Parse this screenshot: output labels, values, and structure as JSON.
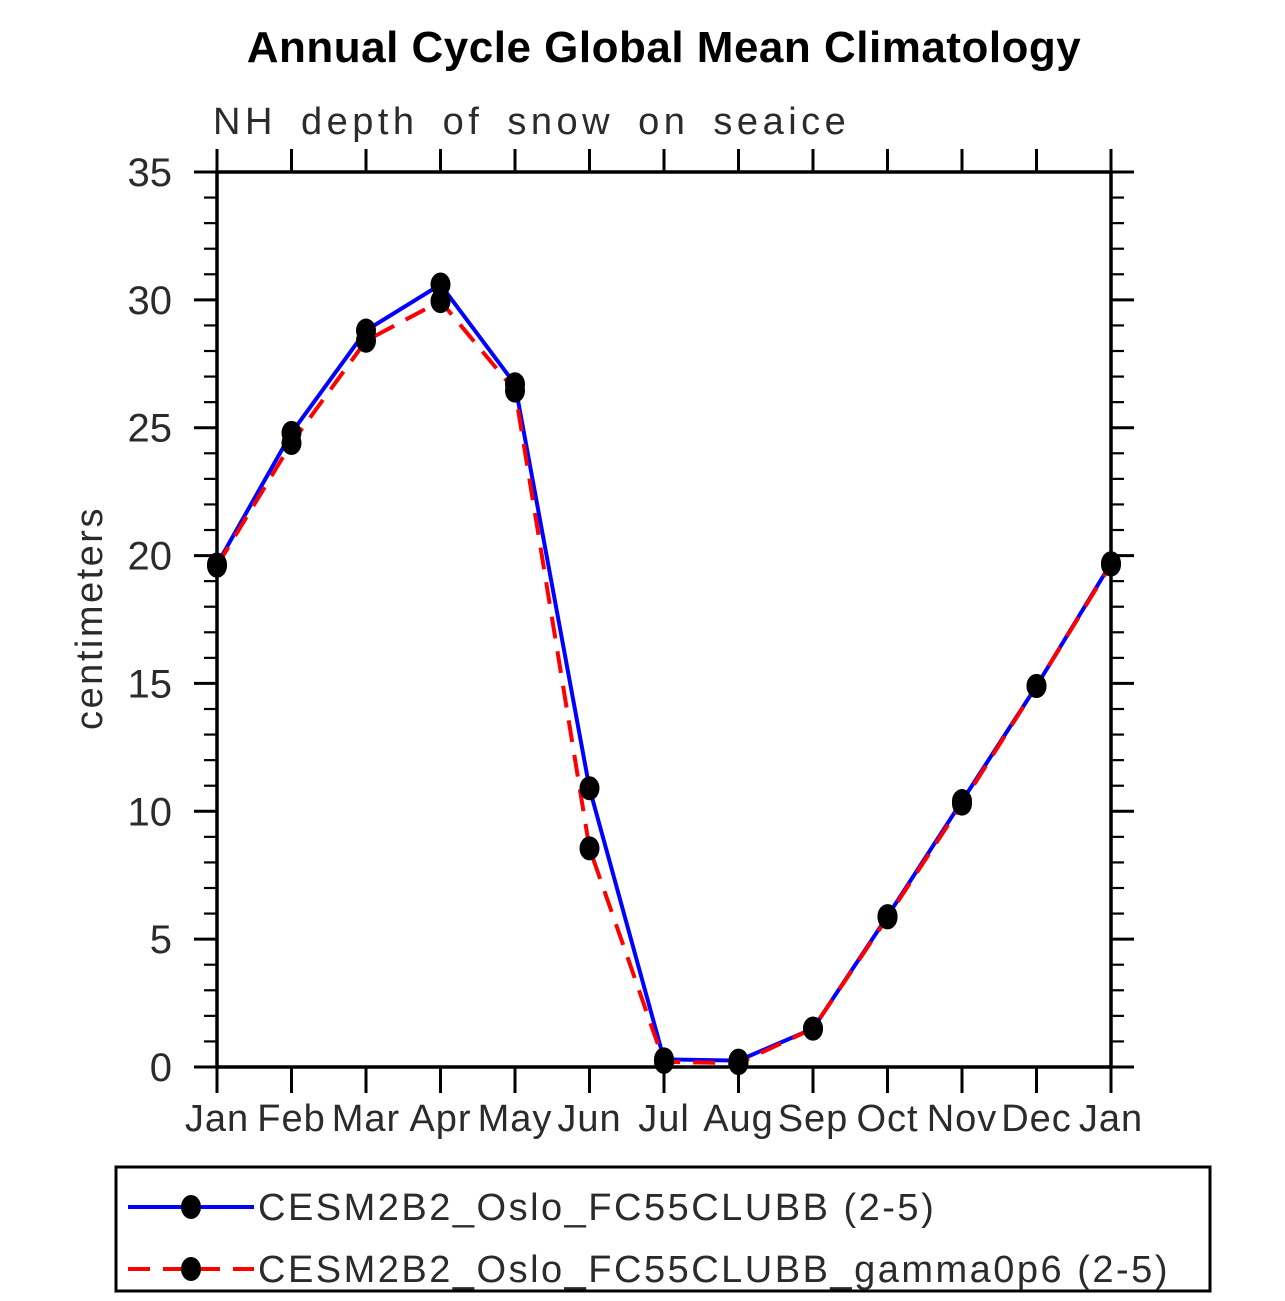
{
  "page": {
    "background": "#ffffff"
  },
  "chart_data": {
    "type": "line",
    "title": "Annual Cycle Global Mean Climatology",
    "subtitle": "NH depth of snow on seaice",
    "ylabel": "centimeters",
    "xlabel": "",
    "categories": [
      "Jan",
      "Feb",
      "Mar",
      "Apr",
      "May",
      "Jun",
      "Jul",
      "Aug",
      "Sep",
      "Oct",
      "Nov",
      "Dec",
      "Jan"
    ],
    "ylim": [
      0,
      35
    ],
    "ytick_step_major": 5,
    "ytick_step_minor": 1,
    "grid": false,
    "axis_color": "#000000",
    "legend_position": "bottom",
    "series": [
      {
        "name": "CESM2B2_Oslo_FC55CLUBB (2-5)",
        "color": "#0000ff",
        "line_style": "solid",
        "marker": "filled-circle",
        "marker_color": "#000000",
        "values": [
          19.65,
          24.8,
          28.8,
          30.6,
          26.7,
          10.9,
          0.3,
          0.25,
          1.5,
          5.9,
          10.4,
          14.9,
          19.7
        ]
      },
      {
        "name": "CESM2B2_Oslo_FC55CLUBB_gamma0p6 (2-5)",
        "color": "#ff0000",
        "line_style": "dashed",
        "marker": "filled-circle",
        "marker_color": "#000000",
        "values": [
          19.6,
          24.4,
          28.4,
          29.95,
          26.45,
          8.55,
          0.2,
          0.15,
          1.5,
          5.85,
          10.3,
          14.9,
          19.65
        ]
      }
    ]
  }
}
